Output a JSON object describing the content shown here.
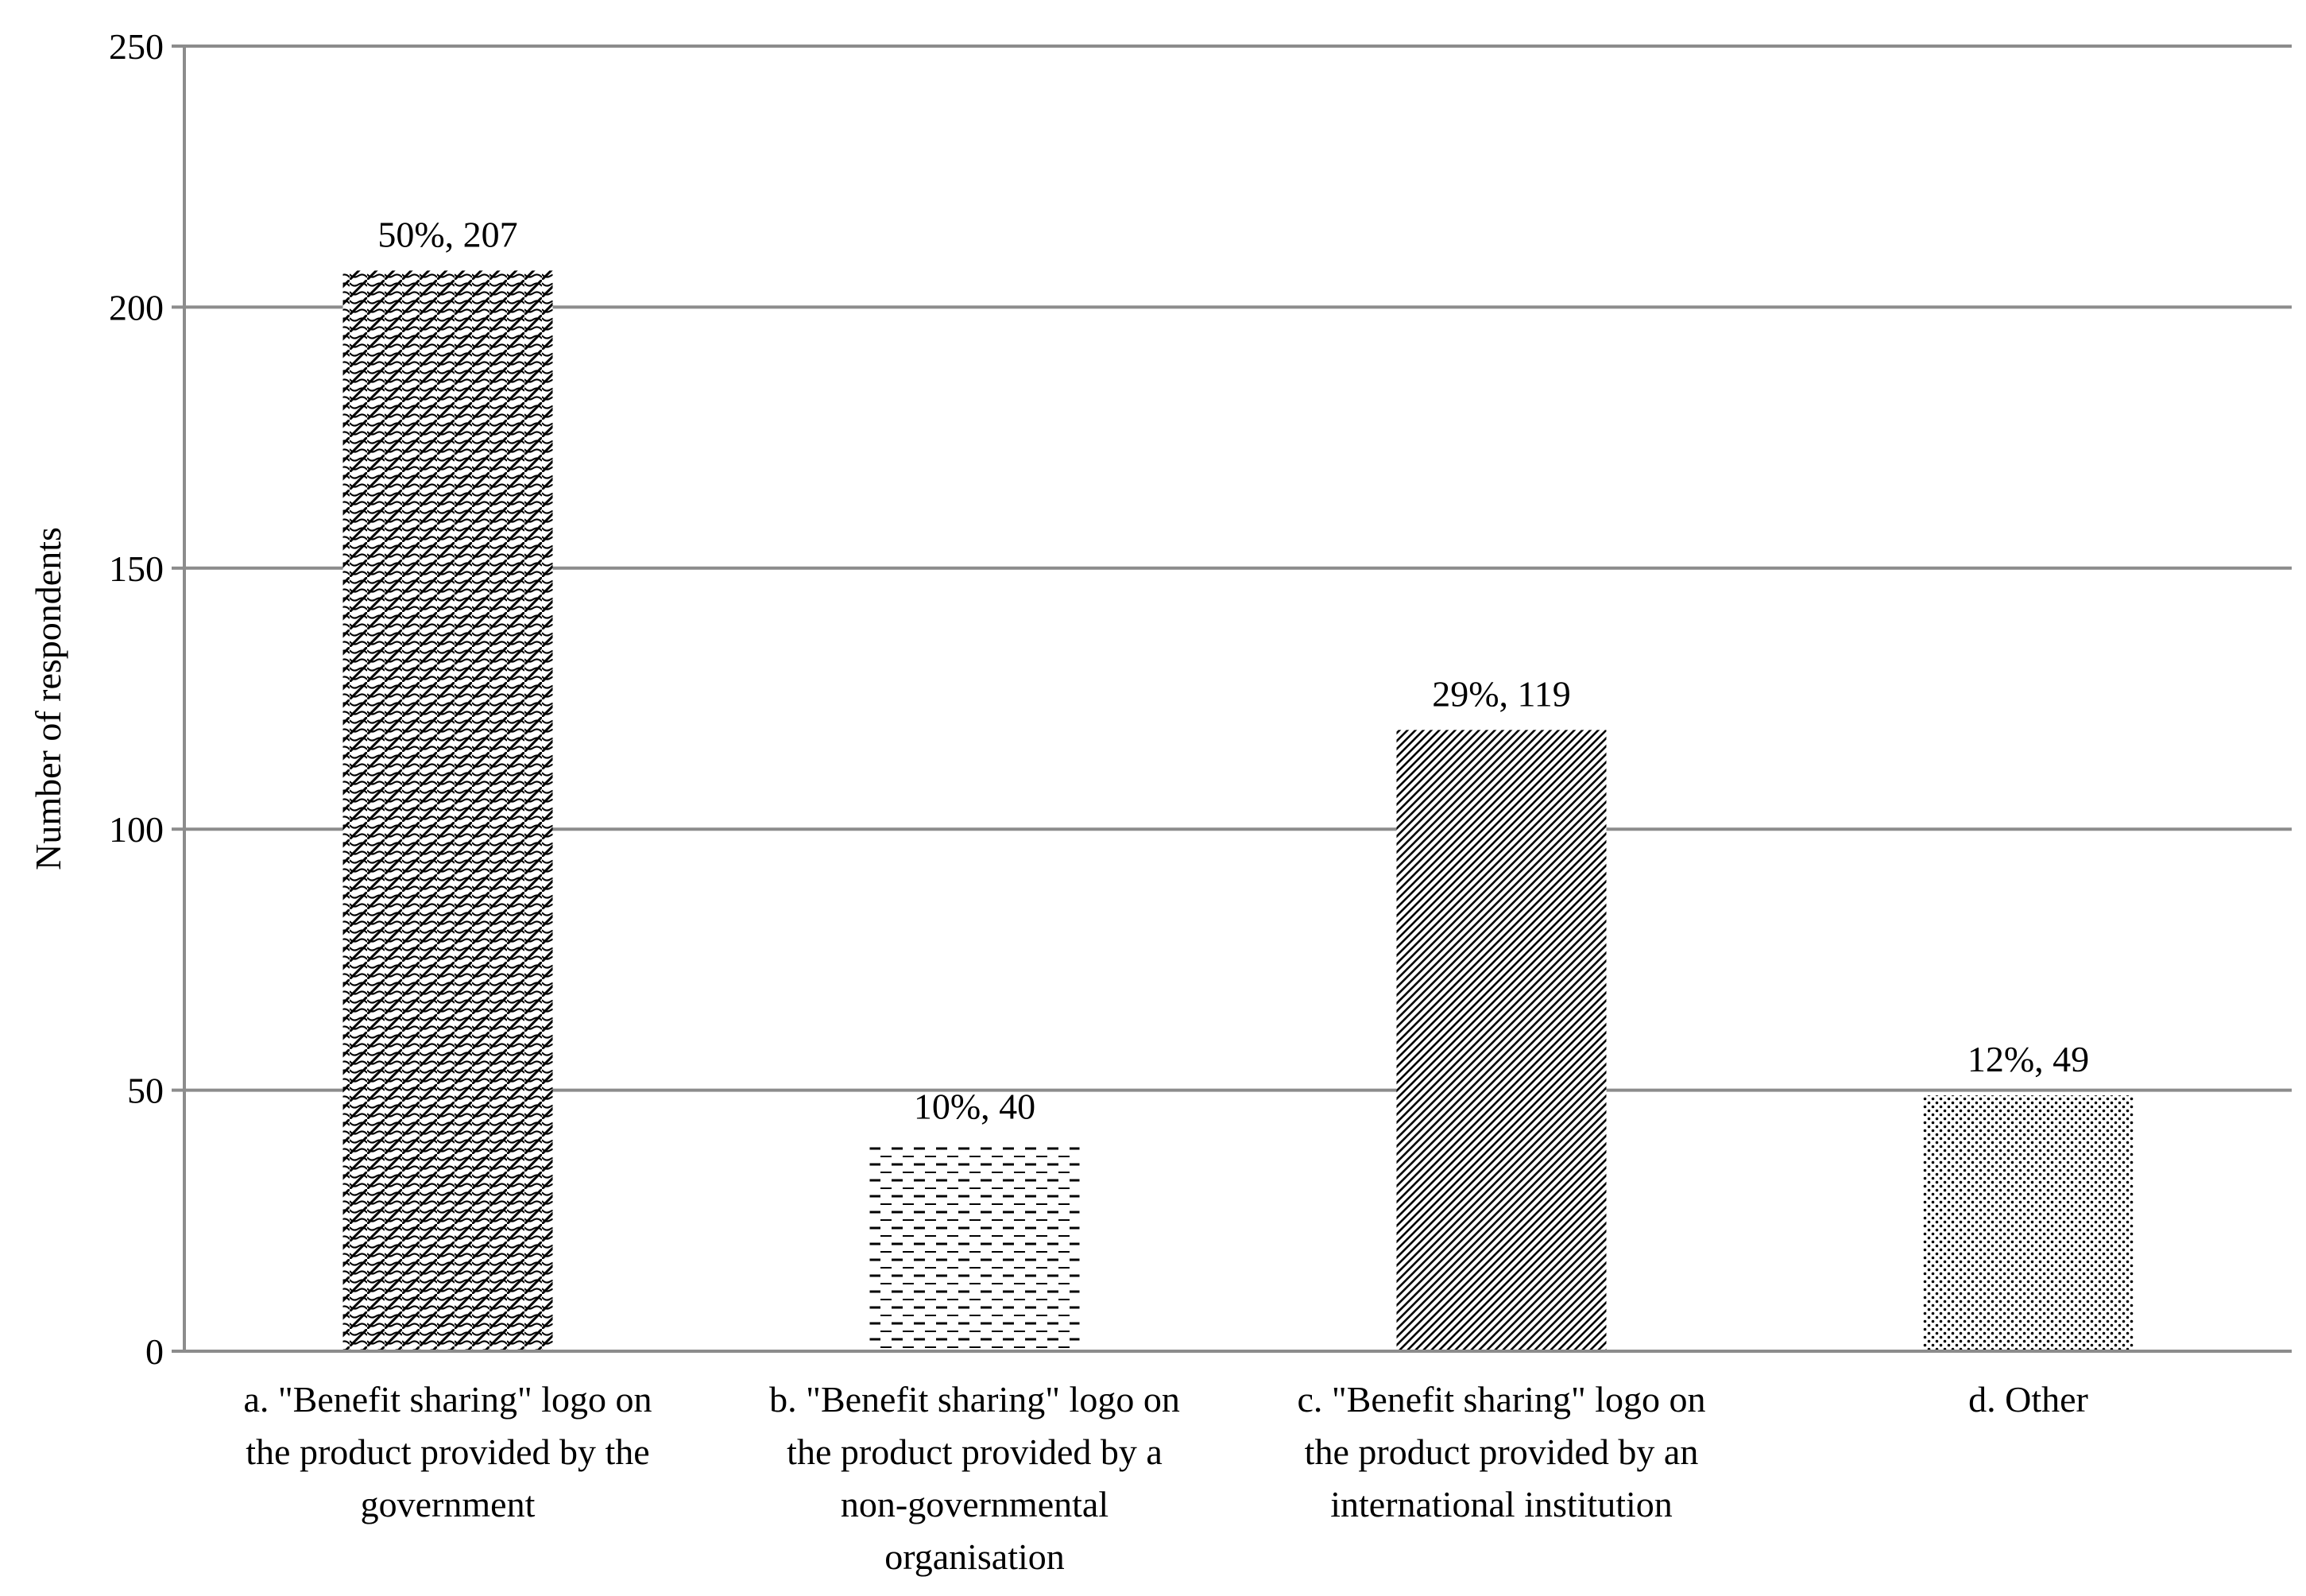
{
  "chart_data": {
    "type": "bar",
    "ylabel": "Number of respondents",
    "xlabel": "",
    "ylim": [
      0,
      250
    ],
    "yticks": [
      0,
      50,
      100,
      150,
      200,
      250
    ],
    "grid": true,
    "categories": [
      [
        "a. \"Benefit sharing\" logo on",
        "the product provided by the",
        "government"
      ],
      [
        "b. \"Benefit sharing\" logo on",
        "the product provided by a",
        "non-governmental",
        "organisation"
      ],
      [
        "c. \"Benefit sharing\" logo on",
        "the product provided by an",
        "international institution"
      ],
      [
        "d. Other"
      ]
    ],
    "values": [
      207,
      40,
      119,
      49
    ],
    "data_labels": [
      "50%, 207",
      "10%, 40",
      "29%, 119",
      "12%, 49"
    ],
    "patterns": [
      "crosshatch-wave",
      "dashes",
      "diagonal-lines",
      "dots"
    ],
    "colors": {
      "bar_ink": "#000000",
      "grid": "#8c8c8c",
      "axis": "#8c8c8c"
    }
  }
}
